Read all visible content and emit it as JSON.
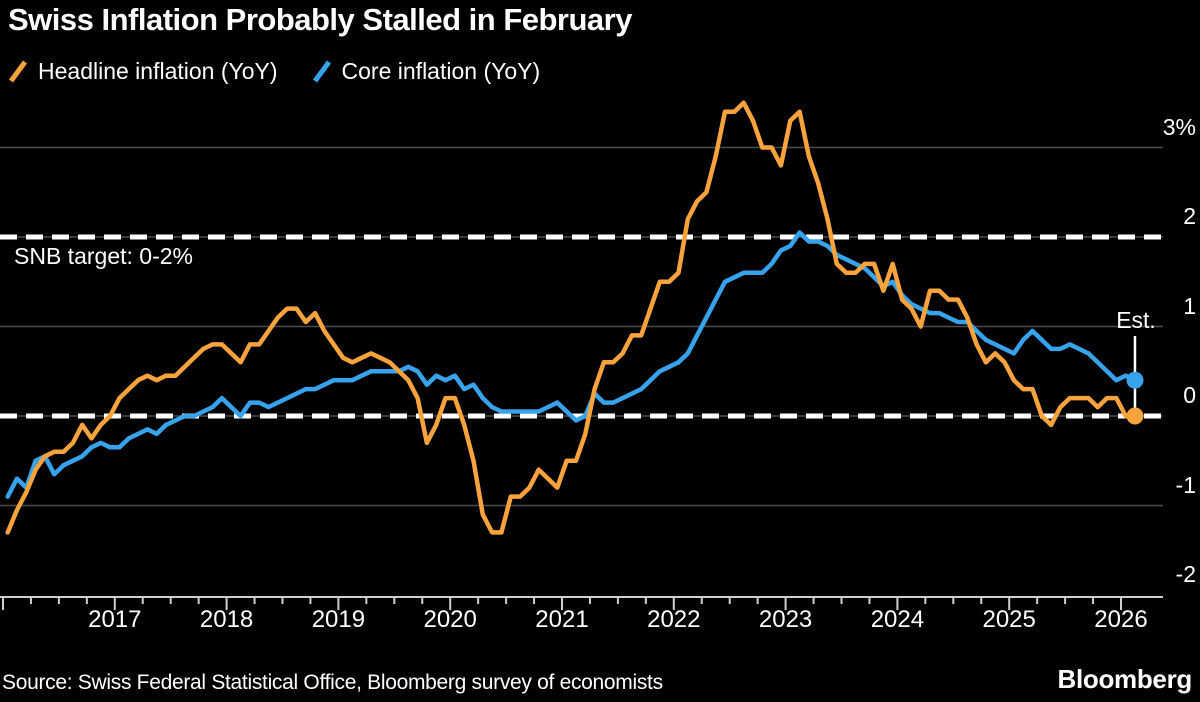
{
  "title": "Swiss Inflation Probably Stalled in February",
  "legend": {
    "items": [
      {
        "label": "Headline inflation (YoY)",
        "color": "#F8A33C"
      },
      {
        "label": "Core inflation (YoY)",
        "color": "#36A3EC"
      }
    ]
  },
  "annotations": {
    "snb_target": "SNB target: 0-2%",
    "estimate": "Est."
  },
  "source": "Source: Swiss Federal Statistical Office, Bloomberg survey of economists",
  "logo": "Bloomberg",
  "colors": {
    "background": "#000000",
    "text": "#ffffff",
    "grid": "#4d4d4d",
    "axis": "#cfcfcf",
    "target_dash": "#ffffff",
    "headline": "#F8A33C",
    "core": "#36A3EC"
  },
  "chart_data": {
    "type": "line",
    "title": "Swiss Inflation Probably Stalled in February",
    "x_unit": "month",
    "x_start": "2016-01",
    "x_end": "2026-02",
    "last_point_is_estimate": true,
    "estimate_label": "Est.",
    "x_tick_labels": [
      "2017",
      "2018",
      "2019",
      "2020",
      "2021",
      "2022",
      "2023",
      "2024",
      "2025",
      "2026"
    ],
    "x_tick_years": [
      2017,
      2018,
      2019,
      2020,
      2021,
      2022,
      2023,
      2024,
      2025,
      2026
    ],
    "y_ticks": [
      {
        "value": 3,
        "label": "3%"
      },
      {
        "value": 2,
        "label": "2"
      },
      {
        "value": 1,
        "label": "1"
      },
      {
        "value": 0,
        "label": "0"
      },
      {
        "value": -1,
        "label": "-1"
      },
      {
        "value": -2,
        "label": "-2"
      }
    ],
    "ylim": [
      -2.3,
      3.6
    ],
    "grid": true,
    "target_band": [
      0,
      2
    ],
    "series": [
      {
        "name": "Headline inflation (YoY)",
        "color": "#F8A33C",
        "values": [
          -1.3,
          -1.05,
          -0.85,
          -0.6,
          -0.45,
          -0.4,
          -0.4,
          -0.3,
          -0.1,
          -0.25,
          -0.1,
          0.0,
          0.2,
          0.3,
          0.4,
          0.45,
          0.4,
          0.45,
          0.45,
          0.55,
          0.65,
          0.75,
          0.8,
          0.8,
          0.7,
          0.6,
          0.8,
          0.8,
          0.95,
          1.1,
          1.2,
          1.2,
          1.05,
          1.15,
          0.95,
          0.8,
          0.65,
          0.6,
          0.65,
          0.7,
          0.65,
          0.6,
          0.5,
          0.4,
          0.2,
          -0.3,
          -0.1,
          0.2,
          0.2,
          -0.1,
          -0.5,
          -1.1,
          -1.3,
          -1.3,
          -0.9,
          -0.9,
          -0.8,
          -0.6,
          -0.7,
          -0.8,
          -0.5,
          -0.5,
          -0.2,
          0.3,
          0.6,
          0.6,
          0.7,
          0.9,
          0.9,
          1.2,
          1.5,
          1.5,
          1.6,
          2.2,
          2.4,
          2.5,
          2.9,
          3.4,
          3.4,
          3.5,
          3.3,
          3.0,
          3.0,
          2.8,
          3.3,
          3.4,
          2.9,
          2.6,
          2.2,
          1.7,
          1.6,
          1.6,
          1.7,
          1.7,
          1.4,
          1.7,
          1.3,
          1.2,
          1.0,
          1.4,
          1.4,
          1.3,
          1.3,
          1.1,
          0.8,
          0.6,
          0.7,
          0.6,
          0.4,
          0.3,
          0.3,
          0.0,
          -0.1,
          0.1,
          0.2,
          0.2,
          0.2,
          0.1,
          0.2,
          0.2,
          0.0,
          0.0
        ]
      },
      {
        "name": "Core inflation (YoY)",
        "color": "#36A3EC",
        "values": [
          -0.9,
          -0.7,
          -0.8,
          -0.5,
          -0.45,
          -0.65,
          -0.55,
          -0.5,
          -0.45,
          -0.35,
          -0.3,
          -0.35,
          -0.35,
          -0.25,
          -0.2,
          -0.15,
          -0.2,
          -0.1,
          -0.05,
          0.0,
          0.0,
          0.05,
          0.1,
          0.2,
          0.1,
          0.0,
          0.15,
          0.15,
          0.1,
          0.15,
          0.2,
          0.25,
          0.3,
          0.3,
          0.35,
          0.4,
          0.4,
          0.4,
          0.45,
          0.5,
          0.5,
          0.5,
          0.5,
          0.55,
          0.5,
          0.35,
          0.45,
          0.4,
          0.45,
          0.3,
          0.35,
          0.2,
          0.1,
          0.05,
          0.05,
          0.05,
          0.05,
          0.05,
          0.1,
          0.15,
          0.05,
          -0.05,
          0.0,
          0.25,
          0.15,
          0.15,
          0.2,
          0.25,
          0.3,
          0.4,
          0.5,
          0.55,
          0.6,
          0.7,
          0.9,
          1.1,
          1.3,
          1.5,
          1.55,
          1.6,
          1.6,
          1.6,
          1.7,
          1.85,
          1.9,
          2.05,
          1.95,
          1.95,
          1.9,
          1.8,
          1.75,
          1.7,
          1.65,
          1.55,
          1.45,
          1.5,
          1.35,
          1.25,
          1.2,
          1.15,
          1.15,
          1.1,
          1.05,
          1.05,
          0.95,
          0.85,
          0.8,
          0.75,
          0.7,
          0.85,
          0.95,
          0.85,
          0.75,
          0.75,
          0.8,
          0.75,
          0.7,
          0.6,
          0.5,
          0.4,
          0.45,
          0.4
        ]
      }
    ],
    "estimates": {
      "headline_feb_2026": 0.0,
      "core_feb_2026": 0.4
    }
  }
}
